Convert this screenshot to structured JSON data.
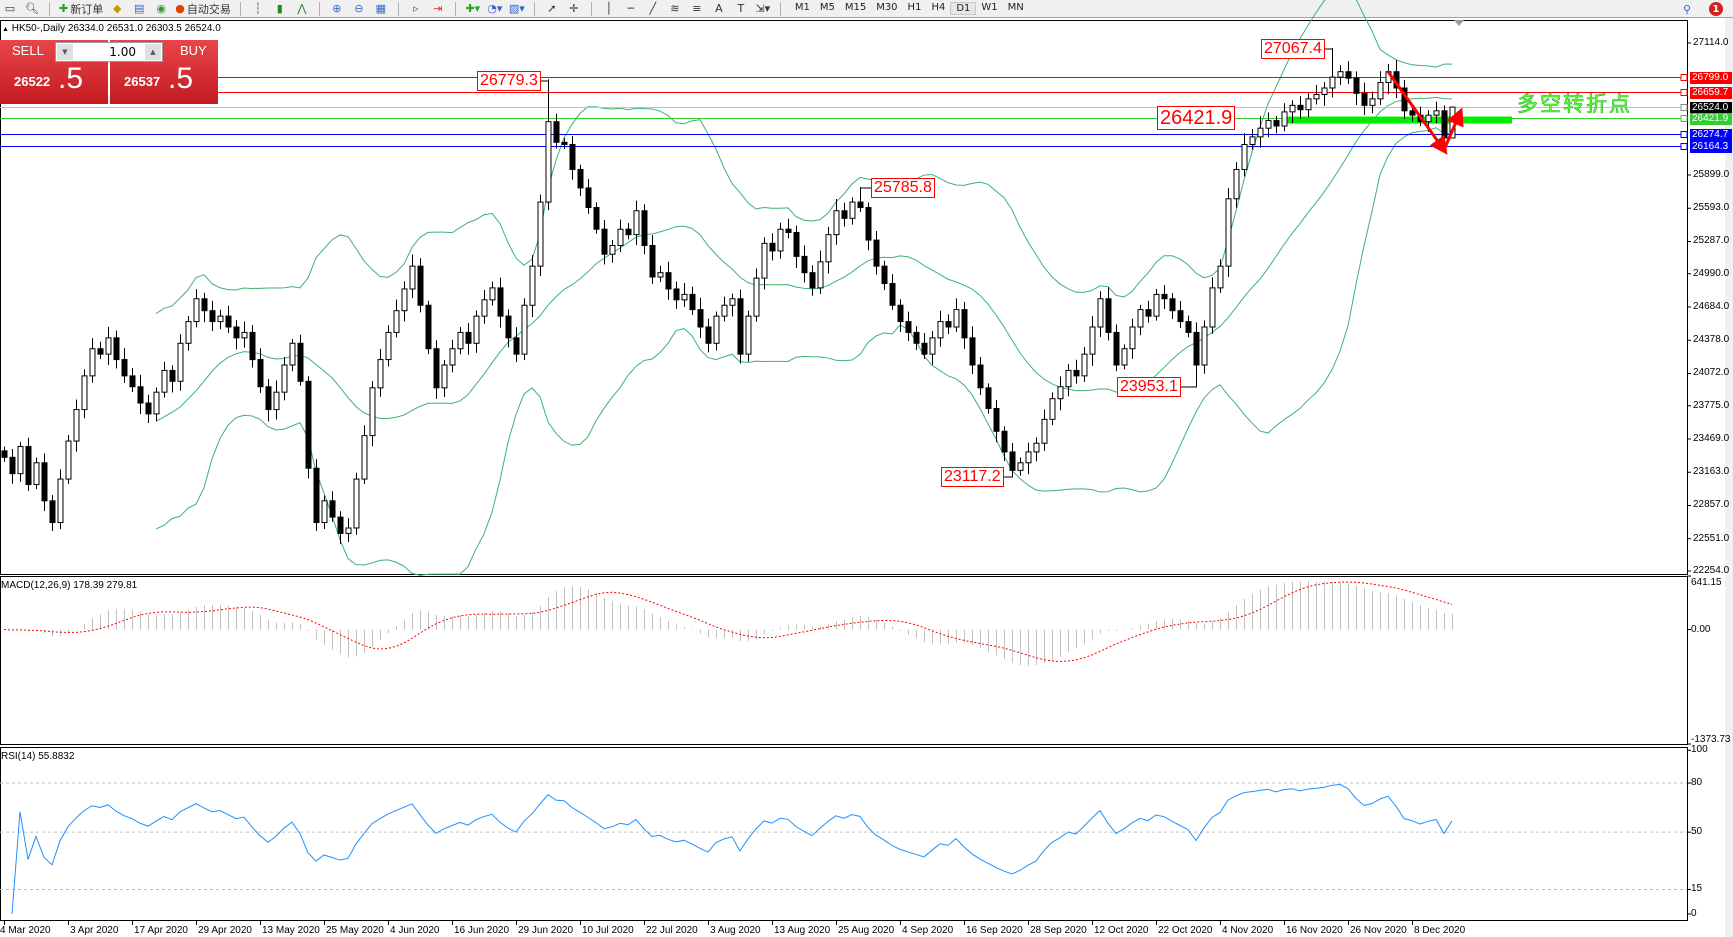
{
  "toolbar": {
    "new_order_label": "新订单",
    "auto_trading_label": "自动交易",
    "timeframes": [
      "M1",
      "M5",
      "M15",
      "M30",
      "H1",
      "H4",
      "D1",
      "W1",
      "MN"
    ],
    "active_timeframe": "D1",
    "notification_count": "1",
    "icons": [
      "new-chart-icon",
      "zoom-icon",
      "new-order-icon",
      "market-watch-icon",
      "navigator-icon",
      "signals-icon",
      "auto-trading-icon",
      "bar-chart-icon",
      "candlestick-icon",
      "line-chart-icon",
      "zoom-in-icon",
      "zoom-out-icon",
      "tile-icon",
      "scroll-icon",
      "shift-icon",
      "indicators-icon",
      "periods-icon",
      "templates-icon",
      "cursor-icon",
      "crosshair-icon",
      "vertical-line-icon",
      "horizontal-line-icon",
      "trendline-icon",
      "fibonacci-icon",
      "fibo-fan-icon",
      "text-icon",
      "label-icon",
      "arrows-icon",
      "search-icon",
      "notification-icon"
    ]
  },
  "chart": {
    "header": "HK50-,Daily  26334.0 26531.0 26303.5 26524.0",
    "trade_panel": {
      "sell_label": "SELL",
      "buy_label": "BUY",
      "lot": "1.00",
      "sell_price_main": "26522",
      "sell_price_big": ".5",
      "buy_price_main": "26537",
      "buy_price_big": ".5"
    },
    "annotation_text": "多空转折点"
  },
  "chart_data": [
    {
      "type": "candlestick",
      "symbol": "HK50-",
      "timeframe": "Daily",
      "last_ohlc": {
        "open": 26334.0,
        "high": 26531.0,
        "low": 26303.5,
        "close": 26524.0
      },
      "close": [
        23300,
        23150,
        23400,
        23050,
        23250,
        22900,
        22700,
        23100,
        23450,
        23740,
        24050,
        24300,
        24250,
        24400,
        24200,
        24050,
        23950,
        23800,
        23700,
        23900,
        24100,
        24000,
        24350,
        24550,
        24760,
        24650,
        24550,
        24600,
        24500,
        24400,
        24450,
        24200,
        23950,
        23740,
        23900,
        24150,
        24350,
        24000,
        23200,
        22700,
        22900,
        22750,
        22600,
        22650,
        23100,
        23500,
        23940,
        24200,
        24450,
        24650,
        24850,
        25060,
        24700,
        24300,
        23940,
        24150,
        24300,
        24450,
        24350,
        24600,
        24750,
        24860,
        24600,
        24400,
        24250,
        24700,
        25060,
        25650,
        26390,
        26200,
        26180,
        25950,
        25780,
        25600,
        25400,
        25170,
        25250,
        25400,
        25350,
        25570,
        25250,
        24960,
        25000,
        24850,
        24750,
        24800,
        24660,
        24500,
        24350,
        24600,
        24700,
        24760,
        24250,
        24600,
        24950,
        25270,
        25200,
        25400,
        25370,
        25150,
        25000,
        24860,
        25100,
        25350,
        25570,
        25500,
        25650,
        25600,
        25300,
        25060,
        24900,
        24700,
        24550,
        24450,
        24350,
        24250,
        24400,
        24550,
        24500,
        24660,
        24400,
        24150,
        23940,
        23750,
        23540,
        23350,
        23180,
        23250,
        23350,
        23430,
        23650,
        23840,
        23950,
        24100,
        24050,
        24250,
        24500,
        24760,
        24450,
        24150,
        24300,
        24500,
        24660,
        24600,
        24800,
        24760,
        24650,
        24550,
        24450,
        24150,
        24500,
        24860,
        25060,
        25680,
        25950,
        26180,
        26250,
        26330,
        26400,
        26350,
        26480,
        26540,
        26500,
        26600,
        26640,
        26700,
        26800,
        26850,
        26790,
        26650,
        26540,
        26600,
        26750,
        26850,
        26700,
        26490,
        26450,
        26390,
        26450,
        26490,
        26240,
        26524
      ],
      "marked_extremes": [
        {
          "label": "26779.3",
          "price": 26779.3,
          "kind": "high",
          "bar": 68
        },
        {
          "label": "27067.4",
          "price": 27067.4,
          "kind": "high",
          "bar": 166
        },
        {
          "label": "25785.8",
          "price": 25785.8,
          "kind": "high",
          "bar": 107
        },
        {
          "label": "23117.2",
          "price": 23117.2,
          "kind": "low",
          "bar": 126
        },
        {
          "label": "23953.1",
          "price": 23953.1,
          "kind": "low",
          "bar": 149
        },
        {
          "label": "26421.9",
          "price": 26421.9,
          "kind": "level",
          "bar": 145
        }
      ],
      "horizontal_lines": [
        {
          "price": 26799.0,
          "label": "26799.0",
          "color": "#ff0000"
        },
        {
          "price": 26659.7,
          "label": "26659.7",
          "color": "#ff0000"
        },
        {
          "price": 26524.0,
          "label": "26524.0",
          "color": "#000000",
          "line_color": "#c0c0c0"
        },
        {
          "price": 26421.9,
          "label": "26421.9",
          "color": "#33cc33"
        },
        {
          "price": 26274.7,
          "label": "26274.7",
          "color": "#0000ff"
        },
        {
          "price": 26164.3,
          "label": "26164.3",
          "color": "#0000ff"
        }
      ],
      "support_zone": {
        "price": 26400,
        "color": "#00ee00"
      },
      "arrows": {
        "color": "#ff0000",
        "points": [
          [
            173,
            26850
          ],
          [
            180,
            26130
          ],
          [
            182,
            26470
          ]
        ]
      },
      "bollinger_color": "#3cb371",
      "y_ticks": [
        "27114.0",
        "25899.0",
        "25593.0",
        "25287.0",
        "24990.0",
        "24684.0",
        "24378.0",
        "24072.0",
        "23775.0",
        "23469.0",
        "23163.0",
        "22857.0",
        "22551.0",
        "22254.0"
      ],
      "y_range": [
        22254.0,
        27114.0
      ],
      "x_ticks": [
        "4 Mar 2020",
        "3 Apr 2020",
        "17 Apr 2020",
        "29 Apr 2020",
        "13 May 2020",
        "25 May 2020",
        "4 Jun 2020",
        "16 Jun 2020",
        "29 Jun 2020",
        "10 Jul 2020",
        "22 Jul 2020",
        "3 Aug 2020",
        "13 Aug 2020",
        "25 Aug 2020",
        "4 Sep 2020",
        "16 Sep 2020",
        "28 Sep 2020",
        "12 Oct 2020",
        "22 Oct 2020",
        "4 Nov 2020",
        "16 Nov 2020",
        "26 Nov 2020",
        "8 Dec 2020"
      ]
    },
    {
      "type": "bar",
      "title": "MACD(12,26,9) 178.39 279.81",
      "params": [
        12,
        26,
        9
      ],
      "main": 178.39,
      "signal": 279.81,
      "y_ticks": [
        "641.15",
        "0.00",
        "-1373.73"
      ],
      "y_range": [
        -1373.73,
        641.15
      ],
      "histogram_color": "#c0c0c0",
      "signal_color": "#ff0000"
    },
    {
      "type": "line",
      "title": "RSI(14) 55.8832",
      "period": 14,
      "value": 55.8832,
      "y_ticks": [
        "100",
        "80",
        "50",
        "15",
        "0"
      ],
      "levels": [
        80,
        50,
        15
      ],
      "y_range": [
        0,
        100
      ],
      "color": "#1e90ff"
    }
  ]
}
